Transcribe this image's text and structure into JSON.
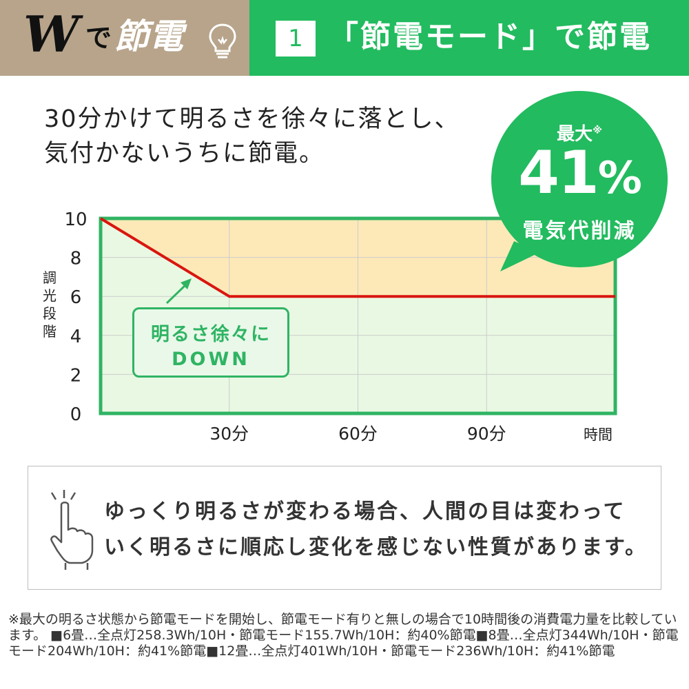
{
  "header": {
    "brand_w": "W",
    "brand_de": "で",
    "brand_setsuden": "節電",
    "number": "1",
    "title": "「節電モード」で節電"
  },
  "intro": {
    "line1": "30分かけて明るさを徐々に落とし、",
    "line2": "気付かないうちに節電。"
  },
  "badge": {
    "top": "最大",
    "mark": "※",
    "value": "41",
    "unit": "%",
    "bottom": "電気代削減"
  },
  "chart_data": {
    "type": "line",
    "ylabel": "調光段階",
    "xlabel": "時間",
    "y_ticks": [
      "10",
      "8",
      "6",
      "4",
      "2",
      "0"
    ],
    "x_ticks": [
      "30分",
      "60分",
      "90分"
    ],
    "ylim": [
      0,
      10
    ],
    "xlim": [
      0,
      120
    ],
    "series": [
      {
        "x": [
          0,
          30,
          120
        ],
        "y": [
          10,
          6,
          6
        ]
      }
    ],
    "colors": {
      "line": "#d9160f",
      "saved_area": "#fde9b8",
      "used_area": "#e9f8e3",
      "frame": "#2fb463"
    },
    "annotation": {
      "line1": "明るさ徐々に",
      "line2": "DOWN"
    }
  },
  "note": {
    "line1": "ゆっくり明るさが変わる場合、人間の目は変わって",
    "line2": "いく明るさに順応し変化を感じない性質があります。"
  },
  "footnote": "※最大の明るさ状態から節電モードを開始し、節電モード有りと無しの場合で10時間後の消費電力量を比較しています。 ■6畳…全点灯258.3Wh/10H・節電モード155.7Wh/10H：約40%節電■8畳…全点灯344Wh/10H・節電モード204Wh/10H：約41%節電■12畳…全点灯401Wh/10H・節電モード236Wh/10H：約41%節電"
}
